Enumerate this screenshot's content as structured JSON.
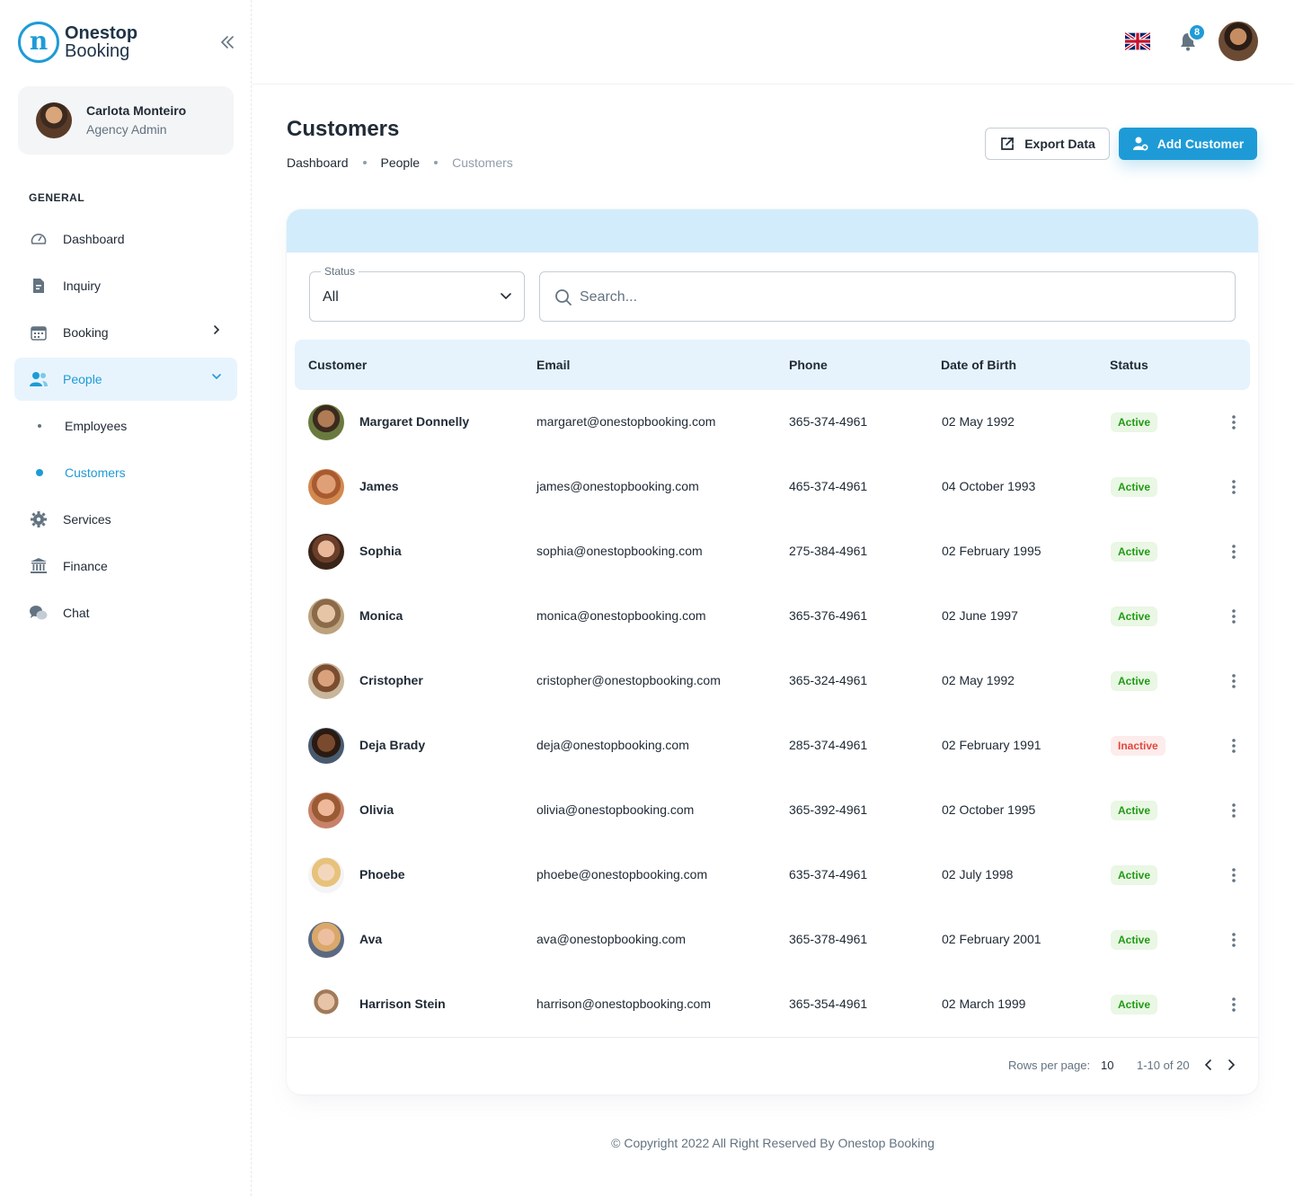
{
  "brand": {
    "line1": "Onestop",
    "line2": "Booking",
    "mark": "n"
  },
  "user": {
    "name": "Carlota Monteiro",
    "role": "Agency Admin"
  },
  "nav": {
    "section": "GENERAL",
    "items": [
      {
        "label": "Dashboard",
        "icon": "dashboard-icon"
      },
      {
        "label": "Inquiry",
        "icon": "inquiry-icon"
      },
      {
        "label": "Booking",
        "icon": "calendar-icon"
      },
      {
        "label": "People",
        "icon": "people-icon"
      },
      {
        "label": "Services",
        "icon": "gear-icon"
      },
      {
        "label": "Finance",
        "icon": "bank-icon"
      },
      {
        "label": "Chat",
        "icon": "chat-icon"
      }
    ],
    "sub_items": [
      {
        "label": "Employees"
      },
      {
        "label": "Customers"
      }
    ]
  },
  "header": {
    "notifications": "8"
  },
  "page": {
    "title": "Customers",
    "breadcrumb": [
      "Dashboard",
      "People",
      "Customers"
    ],
    "export_label": "Export Data",
    "add_label": "Add Customer"
  },
  "filters": {
    "status_label": "Status",
    "status_value": "All",
    "search_placeholder": "Search..."
  },
  "table": {
    "columns": [
      "Customer",
      "Email",
      "Phone",
      "Date of Birth",
      "Status"
    ],
    "rows": [
      {
        "name": "Margaret Donnelly",
        "email": "margaret@onestopbooking.com",
        "phone": "365-374-4961",
        "dob": "02 May 1992",
        "status": "Active"
      },
      {
        "name": "James",
        "email": "james@onestopbooking.com",
        "phone": "465-374-4961",
        "dob": "04 October 1993",
        "status": "Active"
      },
      {
        "name": "Sophia",
        "email": "sophia@onestopbooking.com",
        "phone": "275-384-4961",
        "dob": "02 February 1995",
        "status": "Active"
      },
      {
        "name": "Monica",
        "email": "monica@onestopbooking.com",
        "phone": "365-376-4961",
        "dob": "02 June 1997",
        "status": "Active"
      },
      {
        "name": "Cristopher",
        "email": "cristopher@onestopbooking.com",
        "phone": "365-324-4961",
        "dob": "02 May 1992",
        "status": "Active"
      },
      {
        "name": "Deja Brady",
        "email": "deja@onestopbooking.com",
        "phone": "285-374-4961",
        "dob": "02 February 1991",
        "status": "Inactive"
      },
      {
        "name": "Olivia",
        "email": "olivia@onestopbooking.com",
        "phone": "365-392-4961",
        "dob": "02 October 1995",
        "status": "Active"
      },
      {
        "name": "Phoebe",
        "email": "phoebe@onestopbooking.com",
        "phone": "635-374-4961",
        "dob": "02 July 1998",
        "status": "Active"
      },
      {
        "name": "Ava",
        "email": "ava@onestopbooking.com",
        "phone": "365-378-4961",
        "dob": "02 February 2001",
        "status": "Active"
      },
      {
        "name": "Harrison Stein",
        "email": "harrison@onestopbooking.com",
        "phone": "365-354-4961",
        "dob": "02 March 1999",
        "status": "Active"
      }
    ]
  },
  "pagination": {
    "rows_label": "Rows per page:",
    "rows_value": "10",
    "range": "1-10 of 20"
  },
  "footer": {
    "copyright": "© Copyright 2022 All Right Reserved By Onestop Booking"
  },
  "colors": {
    "accent": "#1e9bd7",
    "active": "#229a16",
    "inactive": "#e2483d",
    "band": "#d3ecfb"
  }
}
